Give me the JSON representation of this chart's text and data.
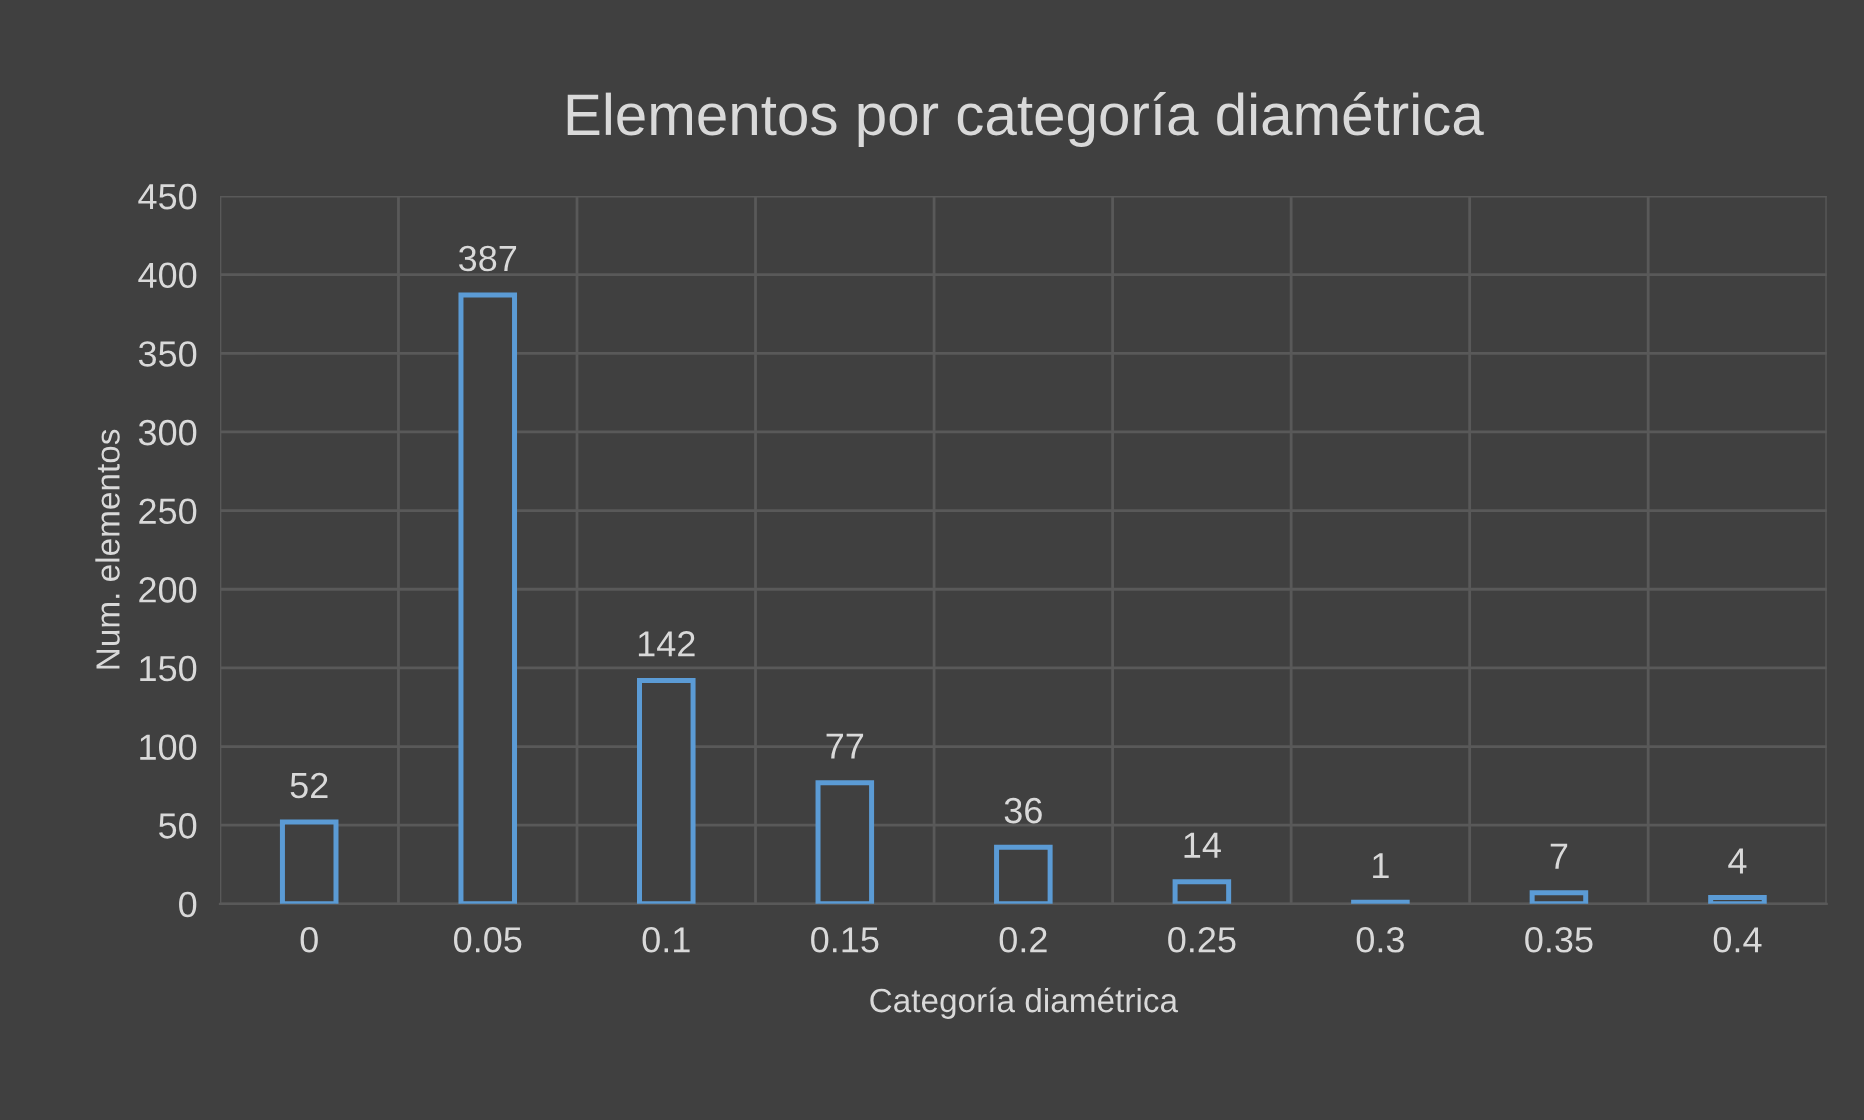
{
  "chart_data": {
    "type": "bar",
    "title": "Elementos por categoría diamétrica",
    "xlabel": "Categoría diamétrica",
    "ylabel": "Num. elementos",
    "categories": [
      "0",
      "0.05",
      "0.1",
      "0.15",
      "0.2",
      "0.25",
      "0.3",
      "0.35",
      "0.4"
    ],
    "values": [
      52,
      387,
      142,
      77,
      36,
      14,
      1,
      7,
      4
    ],
    "color": "#5b9bd5",
    "ylim": [
      0,
      450
    ],
    "yticks": [
      0,
      50,
      100,
      150,
      200,
      250,
      300,
      350,
      400,
      450
    ],
    "grid": true,
    "data_labels": true
  }
}
